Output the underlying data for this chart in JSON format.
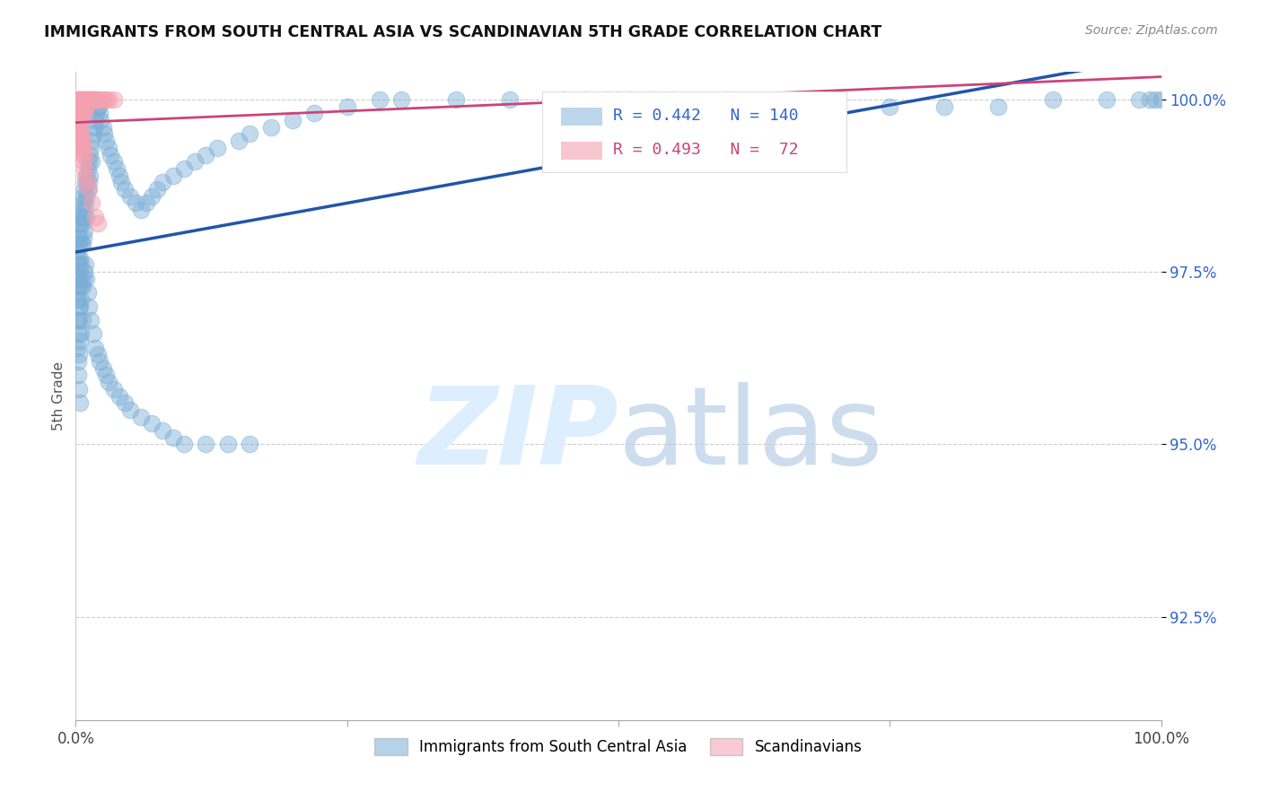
{
  "title": "IMMIGRANTS FROM SOUTH CENTRAL ASIA VS SCANDINAVIAN 5TH GRADE CORRELATION CHART",
  "source": "Source: ZipAtlas.com",
  "ylabel": "5th Grade",
  "y_ticks": [
    0.925,
    0.95,
    0.975,
    1.0
  ],
  "y_tick_labels": [
    "92.5%",
    "95.0%",
    "97.5%",
    "100.0%"
  ],
  "x_ticks": [
    0.0,
    0.25,
    0.5,
    0.75,
    1.0
  ],
  "x_tick_labels": [
    "0.0%",
    "",
    "",
    "",
    "100.0%"
  ],
  "x_range": [
    0.0,
    1.0
  ],
  "y_range": [
    0.91,
    1.004
  ],
  "blue_R": 0.442,
  "blue_N": 140,
  "pink_R": 0.493,
  "pink_N": 72,
  "blue_color": "#7aaed6",
  "pink_color": "#f4a0b0",
  "blue_line_color": "#2255aa",
  "pink_line_color": "#cc4477",
  "legend_label_blue": "Immigrants from South Central Asia",
  "legend_label_pink": "Scandinavians",
  "blue_scatter_x": [
    0.001,
    0.001,
    0.001,
    0.002,
    0.002,
    0.002,
    0.002,
    0.003,
    0.003,
    0.003,
    0.003,
    0.003,
    0.004,
    0.004,
    0.004,
    0.004,
    0.005,
    0.005,
    0.005,
    0.005,
    0.005,
    0.006,
    0.006,
    0.006,
    0.007,
    0.007,
    0.007,
    0.008,
    0.008,
    0.008,
    0.009,
    0.009,
    0.01,
    0.01,
    0.01,
    0.011,
    0.011,
    0.012,
    0.012,
    0.013,
    0.013,
    0.014,
    0.015,
    0.015,
    0.016,
    0.017,
    0.018,
    0.019,
    0.02,
    0.021,
    0.022,
    0.023,
    0.025,
    0.026,
    0.028,
    0.03,
    0.032,
    0.035,
    0.038,
    0.04,
    0.042,
    0.045,
    0.05,
    0.055,
    0.06,
    0.065,
    0.07,
    0.075,
    0.08,
    0.09,
    0.1,
    0.11,
    0.12,
    0.13,
    0.15,
    0.16,
    0.18,
    0.2,
    0.22,
    0.25,
    0.28,
    0.3,
    0.35,
    0.4,
    0.45,
    0.5,
    0.55,
    0.6,
    0.65,
    0.7,
    0.001,
    0.001,
    0.002,
    0.002,
    0.003,
    0.003,
    0.004,
    0.004,
    0.005,
    0.005,
    0.006,
    0.006,
    0.007,
    0.008,
    0.009,
    0.01,
    0.011,
    0.012,
    0.014,
    0.016,
    0.018,
    0.02,
    0.022,
    0.025,
    0.028,
    0.03,
    0.035,
    0.04,
    0.045,
    0.05,
    0.06,
    0.07,
    0.08,
    0.09,
    0.1,
    0.12,
    0.14,
    0.16,
    0.002,
    0.003,
    0.004,
    0.75,
    0.8,
    0.85,
    0.9,
    0.95,
    0.98,
    0.99,
    0.995,
    1.0
  ],
  "blue_scatter_y": [
    0.978,
    0.975,
    0.972,
    0.98,
    0.977,
    0.974,
    0.971,
    0.982,
    0.979,
    0.976,
    0.973,
    0.97,
    0.983,
    0.98,
    0.977,
    0.974,
    0.984,
    0.982,
    0.979,
    0.976,
    0.973,
    0.985,
    0.982,
    0.979,
    0.986,
    0.983,
    0.98,
    0.987,
    0.984,
    0.981,
    0.988,
    0.985,
    0.989,
    0.986,
    0.983,
    0.99,
    0.987,
    0.991,
    0.988,
    0.992,
    0.989,
    0.993,
    0.994,
    0.991,
    0.995,
    0.996,
    0.997,
    0.998,
    0.999,
    0.999,
    0.998,
    0.997,
    0.996,
    0.995,
    0.994,
    0.993,
    0.992,
    0.991,
    0.99,
    0.989,
    0.988,
    0.987,
    0.986,
    0.985,
    0.984,
    0.985,
    0.986,
    0.987,
    0.988,
    0.989,
    0.99,
    0.991,
    0.992,
    0.993,
    0.994,
    0.995,
    0.996,
    0.997,
    0.998,
    0.999,
    1.0,
    1.0,
    1.0,
    1.0,
    1.0,
    1.0,
    1.0,
    1.0,
    1.0,
    1.0,
    0.968,
    0.964,
    0.966,
    0.962,
    0.968,
    0.963,
    0.97,
    0.965,
    0.971,
    0.966,
    0.973,
    0.968,
    0.974,
    0.975,
    0.976,
    0.974,
    0.972,
    0.97,
    0.968,
    0.966,
    0.964,
    0.963,
    0.962,
    0.961,
    0.96,
    0.959,
    0.958,
    0.957,
    0.956,
    0.955,
    0.954,
    0.953,
    0.952,
    0.951,
    0.95,
    0.95,
    0.95,
    0.95,
    0.96,
    0.958,
    0.956,
    0.999,
    0.999,
    0.999,
    1.0,
    1.0,
    1.0,
    1.0,
    1.0,
    1.0
  ],
  "pink_scatter_x": [
    0.001,
    0.001,
    0.001,
    0.002,
    0.002,
    0.002,
    0.003,
    0.003,
    0.003,
    0.004,
    0.004,
    0.004,
    0.005,
    0.005,
    0.005,
    0.006,
    0.006,
    0.007,
    0.007,
    0.007,
    0.008,
    0.008,
    0.008,
    0.009,
    0.009,
    0.01,
    0.01,
    0.011,
    0.012,
    0.013,
    0.014,
    0.015,
    0.016,
    0.017,
    0.018,
    0.019,
    0.02,
    0.022,
    0.025,
    0.028,
    0.03,
    0.035,
    0.002,
    0.003,
    0.004,
    0.005,
    0.006,
    0.007,
    0.008,
    0.002,
    0.003,
    0.004,
    0.005,
    0.006,
    0.001,
    0.002,
    0.003,
    0.004,
    0.005,
    0.006,
    0.007,
    0.008,
    0.009,
    0.01,
    0.012,
    0.015,
    0.018,
    0.02,
    0.47,
    0.49,
    0.51,
    0.53
  ],
  "pink_scatter_y": [
    1.0,
    0.999,
    0.998,
    1.0,
    0.999,
    0.998,
    1.0,
    0.999,
    0.998,
    1.0,
    0.999,
    0.998,
    1.0,
    0.999,
    0.998,
    1.0,
    0.999,
    1.0,
    0.999,
    0.998,
    1.0,
    0.999,
    0.998,
    1.0,
    0.999,
    1.0,
    0.999,
    1.0,
    1.0,
    1.0,
    1.0,
    1.0,
    1.0,
    1.0,
    1.0,
    1.0,
    1.0,
    1.0,
    1.0,
    1.0,
    1.0,
    1.0,
    0.997,
    0.997,
    0.996,
    0.995,
    0.994,
    0.993,
    0.992,
    0.996,
    0.995,
    0.994,
    0.993,
    0.992,
    0.998,
    0.997,
    0.996,
    0.995,
    0.994,
    0.993,
    0.991,
    0.99,
    0.989,
    0.988,
    0.987,
    0.985,
    0.983,
    0.982,
    1.0,
    1.0,
    1.0,
    1.0
  ]
}
